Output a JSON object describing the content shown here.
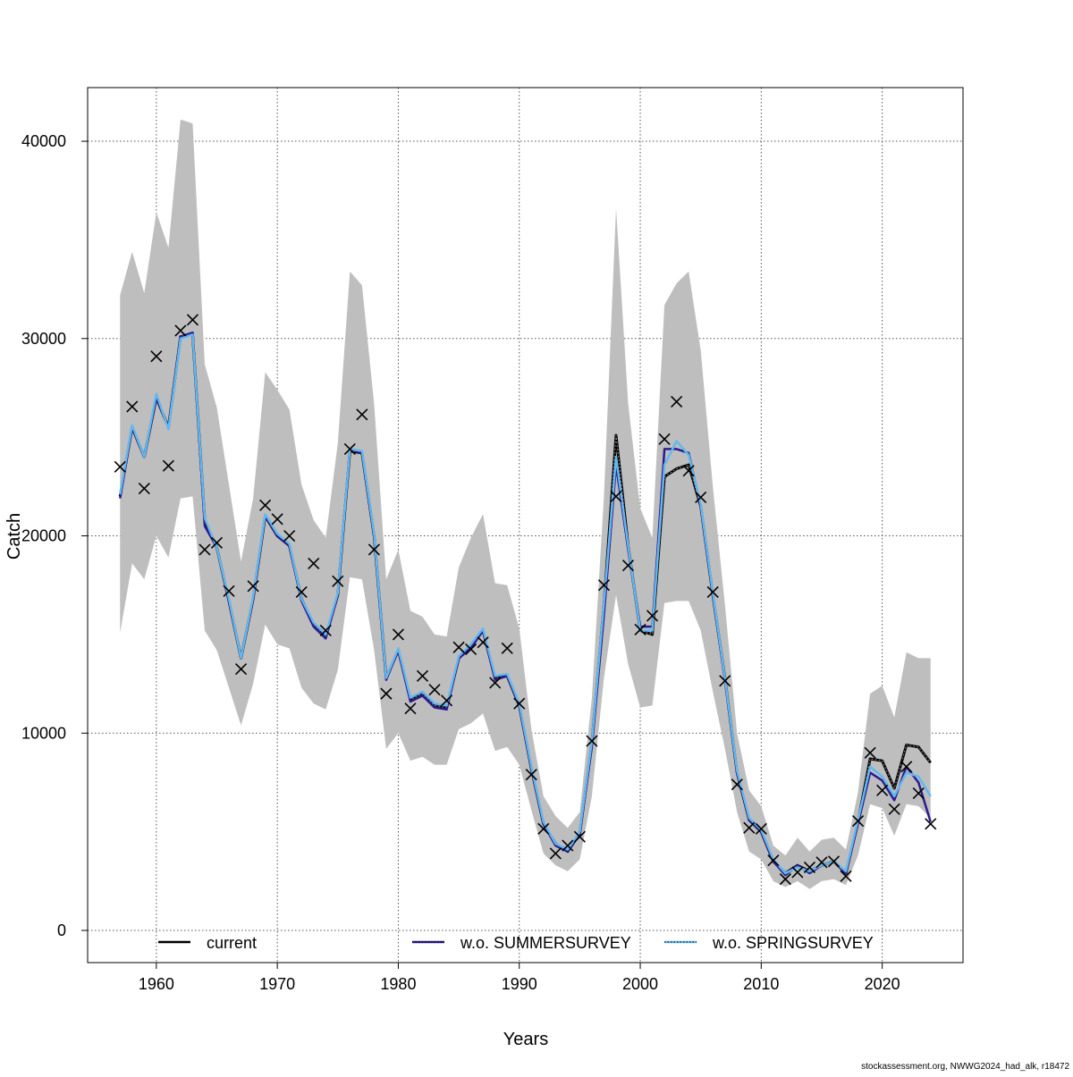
{
  "chart_data": {
    "type": "line",
    "title": "",
    "xlabel": "Years",
    "ylabel": "Catch",
    "xlim": [
      1954.32,
      2026.68
    ],
    "ylim": [
      -1630,
      42720
    ],
    "grid": true,
    "legend_placement": "bottom",
    "x_ticks": [
      1960,
      1970,
      1980,
      1990,
      2000,
      2010,
      2020
    ],
    "y_ticks": [
      0,
      10000,
      20000,
      30000,
      40000
    ],
    "x": [
      1957,
      1958,
      1959,
      1960,
      1961,
      1962,
      1963,
      1964,
      1965,
      1966,
      1967,
      1968,
      1969,
      1970,
      1971,
      1972,
      1973,
      1974,
      1975,
      1976,
      1977,
      1978,
      1979,
      1980,
      1981,
      1982,
      1983,
      1984,
      1985,
      1986,
      1987,
      1988,
      1989,
      1990,
      1991,
      1992,
      1993,
      1994,
      1995,
      1996,
      1997,
      1998,
      1999,
      2000,
      2001,
      2002,
      2003,
      2004,
      2005,
      2006,
      2007,
      2008,
      2009,
      2010,
      2011,
      2012,
      2013,
      2014,
      2015,
      2016,
      2017,
      2018,
      2019,
      2020,
      2021,
      2022,
      2023,
      2024
    ],
    "observed": [
      23500,
      26550,
      22400,
      29100,
      23550,
      30400,
      30950,
      19300,
      19650,
      17200,
      13250,
      17450,
      21550,
      20850,
      20000,
      17150,
      18600,
      15200,
      17700,
      24400,
      26150,
      19300,
      12000,
      15000,
      11250,
      12900,
      12200,
      11650,
      14350,
      14250,
      14600,
      12550,
      14300,
      11500,
      7900,
      5150,
      3900,
      4300,
      4750,
      9600,
      17500,
      22000,
      18500,
      15250,
      15950,
      24900,
      26800,
      23300,
      21950,
      17150,
      12650,
      7400,
      5200,
      5150,
      3550,
      2600,
      2950,
      3200,
      3450,
      3500,
      2750,
      5550,
      9000,
      7100,
      6150,
      8300,
      6950,
      5400
    ],
    "ci_upper": [
      32200,
      34400,
      32300,
      36400,
      34600,
      41100,
      40900,
      28700,
      26500,
      22600,
      18700,
      21900,
      28300,
      27400,
      26400,
      22600,
      20800,
      19900,
      24700,
      33400,
      32700,
      26700,
      17800,
      19300,
      16200,
      15900,
      15000,
      14900,
      18400,
      19900,
      21100,
      17600,
      17500,
      15300,
      10200,
      6800,
      5800,
      5200,
      6000,
      11800,
      22000,
      36600,
      26700,
      21400,
      19900,
      31700,
      32800,
      33400,
      29400,
      22500,
      16500,
      10000,
      7100,
      6300,
      4300,
      3800,
      4700,
      4000,
      4600,
      4700,
      4100,
      7000,
      12000,
      12400,
      10800,
      14100,
      13800,
      13800
    ],
    "ci_lower": [
      15100,
      18600,
      17800,
      20000,
      18900,
      21900,
      22000,
      15200,
      14200,
      12300,
      10400,
      12500,
      15500,
      14500,
      14300,
      12300,
      11500,
      11200,
      13200,
      17900,
      17800,
      14200,
      9200,
      10000,
      8600,
      8800,
      8400,
      8400,
      10200,
      10500,
      11000,
      9100,
      9300,
      8400,
      6100,
      3900,
      3300,
      3000,
      3600,
      6800,
      12800,
      17000,
      13500,
      11300,
      11400,
      16600,
      16700,
      16700,
      15200,
      12100,
      9200,
      6000,
      4000,
      3600,
      2500,
      2200,
      2500,
      2100,
      2500,
      2600,
      2300,
      3800,
      6400,
      6200,
      4800,
      6400,
      6300,
      5700
    ],
    "series": [
      {
        "name": "current",
        "color": "#000000",
        "values": [
          22000,
          25500,
          24000,
          27000,
          25500,
          30100,
          30200,
          20800,
          19400,
          16700,
          13800,
          16800,
          21000,
          20000,
          19500,
          16800,
          15500,
          14900,
          17000,
          24300,
          24200,
          20000,
          12800,
          14200,
          11700,
          12000,
          11400,
          11300,
          13800,
          14400,
          15200,
          12800,
          12900,
          11400,
          8200,
          5400,
          4400,
          4000,
          4900,
          9500,
          16500,
          25100,
          19500,
          15200,
          15000,
          23000,
          23400,
          23600,
          21500,
          17000,
          12800,
          8000,
          5600,
          5000,
          3500,
          2900,
          3300,
          3000,
          3300,
          3500,
          2900,
          5500,
          8700,
          8600,
          7200,
          9400,
          9300,
          8500
        ]
      },
      {
        "name": "w.o. SUMMERSURVEY",
        "color": "#2b1b8f",
        "values": [
          21900,
          25500,
          24000,
          27000,
          25500,
          30100,
          30300,
          20500,
          19400,
          16700,
          13800,
          16800,
          21000,
          20000,
          19500,
          16700,
          15400,
          14800,
          17000,
          24400,
          24200,
          20000,
          12700,
          14200,
          11600,
          11900,
          11300,
          11200,
          13800,
          14300,
          15200,
          12700,
          12900,
          11400,
          8200,
          5400,
          4300,
          4000,
          4900,
          9300,
          16000,
          23600,
          19300,
          15400,
          15400,
          24400,
          24400,
          24200,
          21500,
          17000,
          12700,
          8000,
          5600,
          5000,
          3500,
          2800,
          3300,
          2900,
          3300,
          3500,
          2900,
          5400,
          8000,
          7600,
          6600,
          8300,
          7500,
          5500
        ]
      },
      {
        "name": "w.o. SPRINGSURVEY",
        "color": "#62b8f0",
        "values": [
          22100,
          25600,
          24000,
          27200,
          25400,
          30000,
          30200,
          20900,
          19400,
          16800,
          13800,
          16900,
          21100,
          20100,
          19600,
          16800,
          15600,
          15000,
          17100,
          24400,
          24300,
          20100,
          12800,
          14300,
          11800,
          12100,
          11500,
          11400,
          13900,
          14500,
          15300,
          12900,
          13000,
          11500,
          8300,
          5500,
          4400,
          4100,
          5000,
          9600,
          16600,
          24000,
          19500,
          15200,
          15200,
          23600,
          24800,
          24100,
          21600,
          17100,
          12800,
          8100,
          5700,
          5100,
          3600,
          2900,
          3200,
          3000,
          3300,
          3500,
          3000,
          5600,
          8300,
          7800,
          6800,
          8000,
          7800,
          6800
        ]
      }
    ]
  },
  "footer": {
    "credit": "stockassessment.org, NWWG2024_had_alk, r18472"
  }
}
